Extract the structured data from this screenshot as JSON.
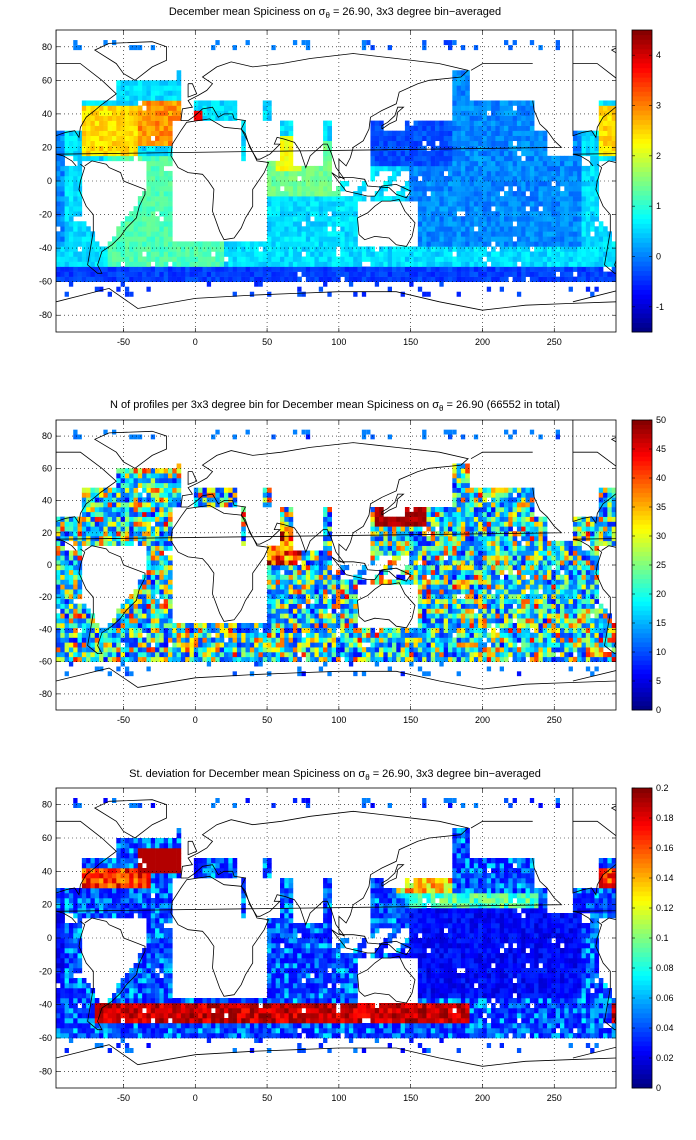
{
  "chart_data": [
    {
      "type": "heatmap",
      "title_prefix": "December mean Spiciness on ",
      "sigma_label": "σ",
      "sigma_sub": "θ",
      "title_suffix": " = 26.90, 3x3 degree bin−averaged",
      "xticks": [
        -50,
        0,
        50,
        100,
        150,
        200,
        250
      ],
      "yticks": [
        80,
        60,
        40,
        20,
        0,
        -20,
        -40,
        -60,
        -80
      ],
      "xlim": [
        -97,
        293
      ],
      "ylim": [
        -90,
        90
      ],
      "grid": true,
      "colorbar": {
        "min": -1.5,
        "max": 4.5,
        "ticks": [
          4,
          3,
          2,
          1,
          0,
          -1
        ]
      },
      "variable": "spiciness"
    },
    {
      "type": "heatmap",
      "title_prefix": "N of profiles per 3x3 degree bin for December mean Spiciness on ",
      "sigma_label": "σ",
      "sigma_sub": "θ",
      "title_suffix": " = 26.90 (66552 in total)",
      "xticks": [
        -50,
        0,
        50,
        100,
        150,
        200,
        250
      ],
      "yticks": [
        80,
        60,
        40,
        20,
        0,
        -20,
        -40,
        -60,
        -80
      ],
      "xlim": [
        -97,
        293
      ],
      "ylim": [
        -90,
        90
      ],
      "grid": true,
      "colorbar": {
        "min": 0,
        "max": 50,
        "ticks": [
          50,
          45,
          40,
          35,
          30,
          25,
          20,
          15,
          10,
          5,
          0
        ]
      },
      "variable": "count"
    },
    {
      "type": "heatmap",
      "title_prefix": "St. deviation for December mean Spiciness on ",
      "sigma_label": "σ",
      "sigma_sub": "θ",
      "title_suffix": " = 26.90, 3x3 degree bin−averaged",
      "xticks": [
        -50,
        0,
        50,
        100,
        150,
        200,
        250
      ],
      "yticks": [
        80,
        60,
        40,
        20,
        0,
        -20,
        -40,
        -60,
        -80
      ],
      "xlim": [
        -97,
        293
      ],
      "ylim": [
        -90,
        90
      ],
      "grid": true,
      "colorbar": {
        "min": 0,
        "max": 0.2,
        "ticks": [
          0.2,
          0.18,
          0.16,
          0.14,
          0.12,
          0.1,
          0.08,
          0.06,
          0.04,
          0.02,
          0
        ]
      },
      "variable": "stdev"
    }
  ]
}
